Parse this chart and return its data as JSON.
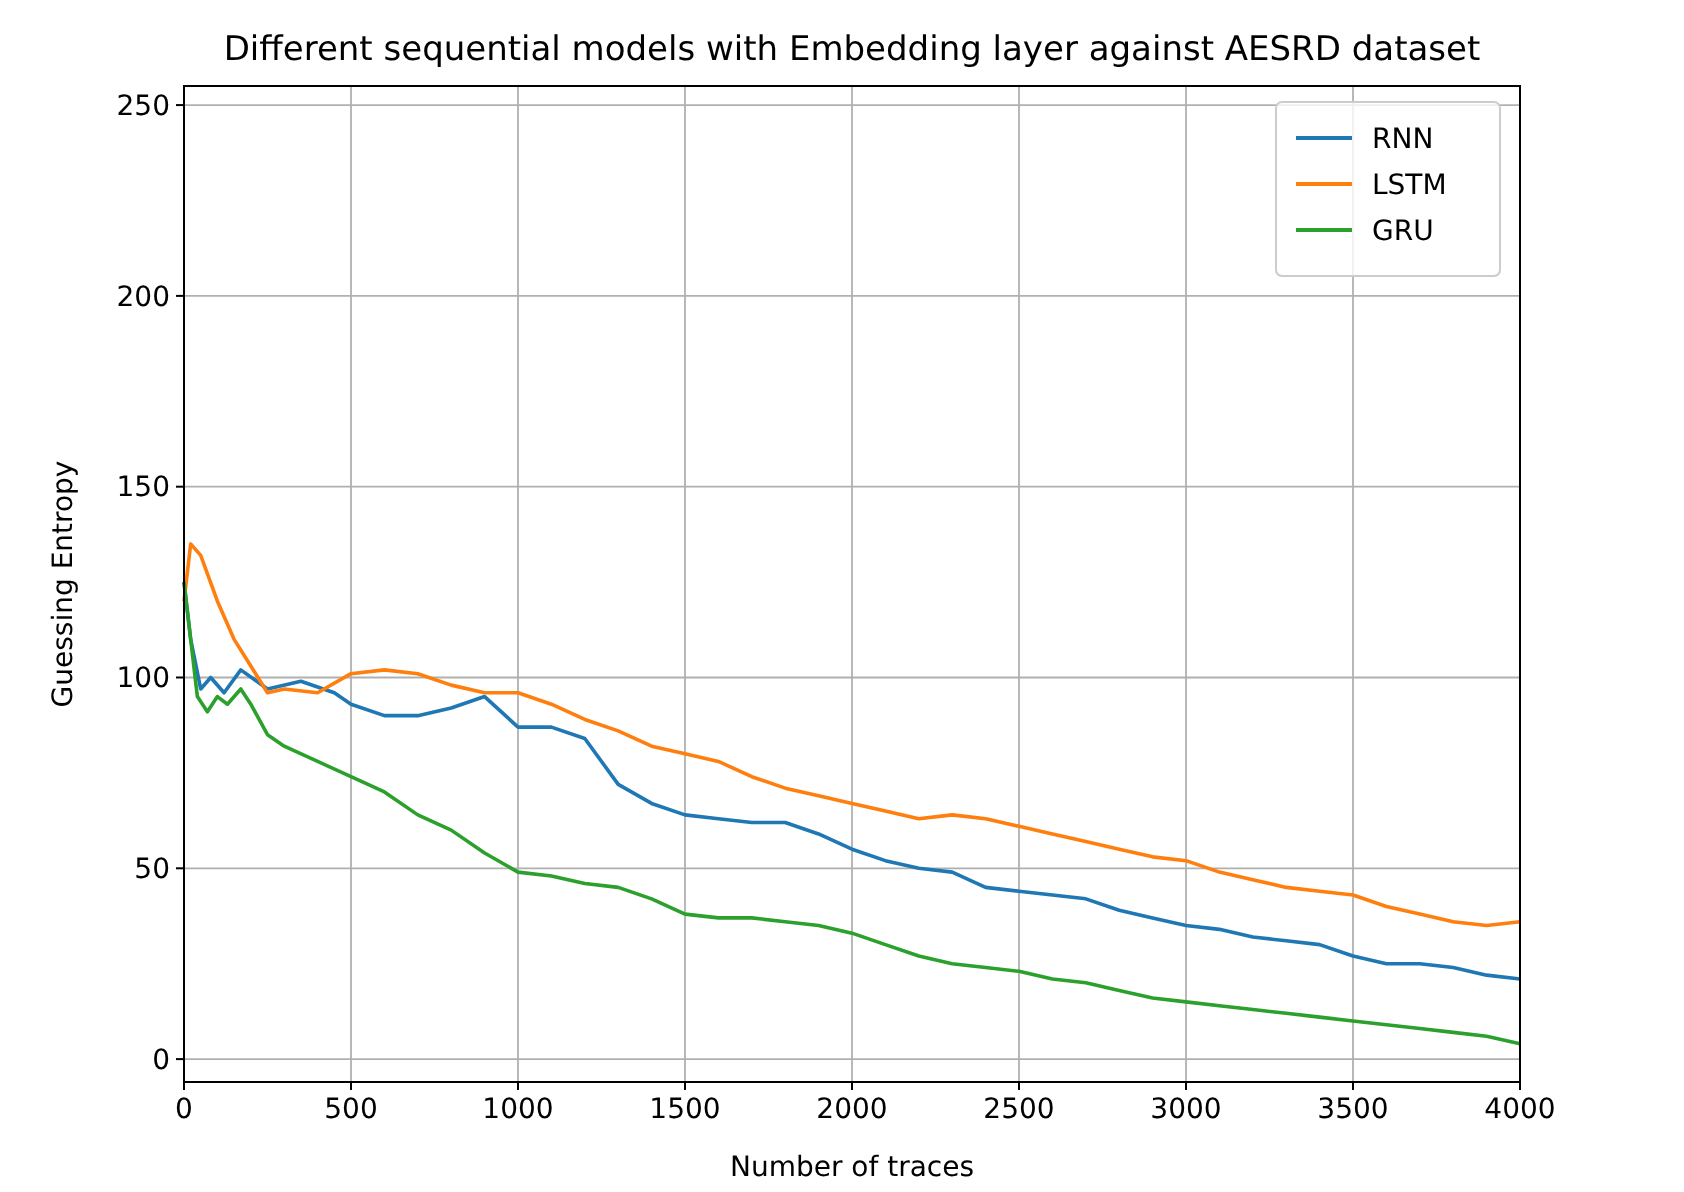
{
  "chart_data": {
    "type": "line",
    "title": "Different sequential models with Embedding layer against AESRD dataset",
    "xlabel": "Number of traces",
    "ylabel": "Guessing Entropy",
    "xlim": [
      0,
      4000
    ],
    "ylim": [
      -6,
      255
    ],
    "xticks": [
      0,
      500,
      1000,
      1500,
      2000,
      2500,
      3000,
      3500,
      4000
    ],
    "yticks": [
      0,
      50,
      100,
      150,
      200,
      250
    ],
    "grid": true,
    "legend": "top right",
    "series": [
      {
        "name": "RNN",
        "color": "#1f77b4",
        "x": [
          0,
          20,
          50,
          80,
          120,
          170,
          250,
          350,
          450,
          500,
          600,
          700,
          800,
          900,
          1000,
          1100,
          1200,
          1300,
          1400,
          1500,
          1600,
          1700,
          1800,
          1900,
          2000,
          2100,
          2200,
          2300,
          2400,
          2500,
          2600,
          2700,
          2800,
          2900,
          3000,
          3100,
          3200,
          3300,
          3400,
          3500,
          3600,
          3700,
          3800,
          3900,
          4000
        ],
        "values": [
          125,
          110,
          97,
          100,
          96,
          102,
          97,
          99,
          96,
          93,
          90,
          90,
          92,
          95,
          87,
          87,
          84,
          72,
          67,
          64,
          63,
          62,
          62,
          59,
          55,
          52,
          50,
          49,
          45,
          44,
          43,
          42,
          39,
          37,
          35,
          34,
          32,
          31,
          30,
          27,
          25,
          25,
          24,
          22,
          21
        ]
      },
      {
        "name": "LSTM",
        "color": "#ff7f0e",
        "x": [
          0,
          20,
          50,
          100,
          150,
          200,
          250,
          300,
          400,
          500,
          600,
          700,
          800,
          900,
          1000,
          1100,
          1200,
          1300,
          1400,
          1500,
          1600,
          1700,
          1800,
          1900,
          2000,
          2100,
          2200,
          2300,
          2400,
          2500,
          2600,
          2700,
          2800,
          2900,
          3000,
          3100,
          3200,
          3300,
          3400,
          3500,
          3600,
          3700,
          3800,
          3900,
          4000
        ],
        "values": [
          120,
          135,
          132,
          120,
          110,
          103,
          96,
          97,
          96,
          101,
          102,
          101,
          98,
          96,
          96,
          93,
          89,
          86,
          82,
          80,
          78,
          74,
          71,
          69,
          67,
          65,
          63,
          64,
          63,
          61,
          59,
          57,
          55,
          53,
          52,
          49,
          47,
          45,
          44,
          43,
          40,
          38,
          36,
          35,
          36
        ]
      },
      {
        "name": "GRU",
        "color": "#2ca02c",
        "x": [
          0,
          20,
          40,
          70,
          100,
          130,
          170,
          200,
          250,
          300,
          400,
          500,
          600,
          700,
          800,
          900,
          1000,
          1100,
          1200,
          1300,
          1400,
          1500,
          1600,
          1700,
          1800,
          1900,
          2000,
          2100,
          2200,
          2300,
          2400,
          2500,
          2600,
          2700,
          2800,
          2900,
          3000,
          3100,
          3200,
          3300,
          3400,
          3500,
          3600,
          3700,
          3800,
          3900,
          4000
        ],
        "values": [
          125,
          110,
          95,
          91,
          95,
          93,
          97,
          93,
          85,
          82,
          78,
          74,
          70,
          64,
          60,
          54,
          49,
          48,
          46,
          45,
          42,
          38,
          37,
          37,
          36,
          35,
          33,
          30,
          27,
          25,
          24,
          23,
          21,
          20,
          18,
          16,
          15,
          14,
          13,
          12,
          11,
          10,
          9,
          8,
          7,
          6,
          4
        ]
      }
    ]
  }
}
